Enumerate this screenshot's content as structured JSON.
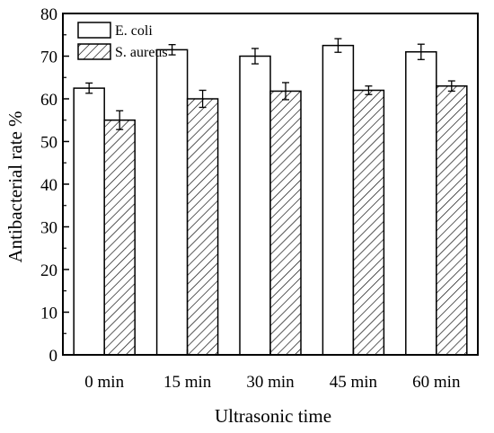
{
  "chart_data": {
    "type": "bar",
    "title": "",
    "xlabel": "Ultrasonic time",
    "ylabel": "Antibacterial rate %",
    "categories": [
      "0 min",
      "15 min",
      "30 min",
      "45 min",
      "60 min"
    ],
    "ylim": [
      0,
      80
    ],
    "yticks": [
      0,
      10,
      20,
      30,
      40,
      50,
      60,
      70,
      80
    ],
    "series": [
      {
        "name": "E. coli",
        "values": [
          62.5,
          71.5,
          70.0,
          72.5,
          71.0
        ],
        "errors": [
          1.2,
          1.2,
          1.8,
          1.6,
          1.8
        ],
        "fill": "#ffffff",
        "pattern": "none"
      },
      {
        "name": "S. aureus",
        "values": [
          55.0,
          60.0,
          61.8,
          62.0,
          63.0
        ],
        "errors": [
          2.2,
          2.0,
          2.0,
          1.0,
          1.2
        ],
        "fill": "#ffffff",
        "pattern": "diagonal-hatch"
      }
    ],
    "legend_position": "top-left",
    "grid": false,
    "colors": {
      "stroke": "#000000",
      "background": "#ffffff"
    }
  }
}
